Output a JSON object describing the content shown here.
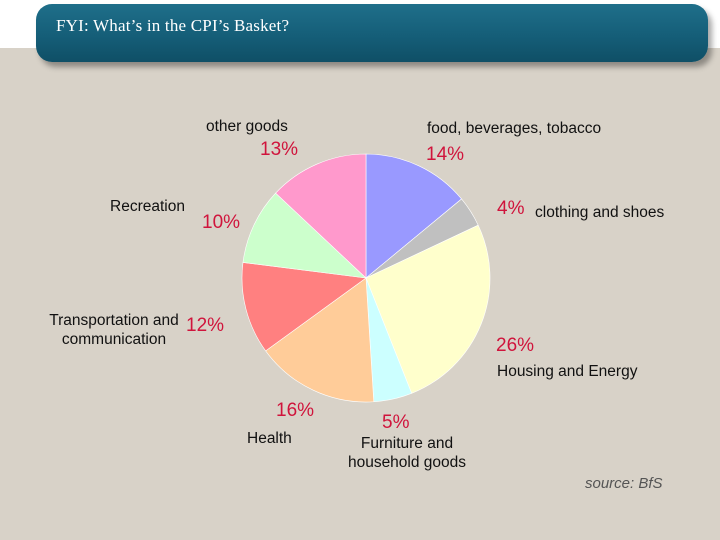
{
  "header": {
    "title": "FYI: What’s in the CPI’s Basket?"
  },
  "chart_data": {
    "type": "pie",
    "title": "",
    "start_angle_deg": 0,
    "direction": "clockwise",
    "slices": [
      {
        "label": "food, beverages, tobacco",
        "value": 14,
        "pct_label": "14%",
        "color": "#9999ff"
      },
      {
        "label": "clothing and shoes",
        "value": 4,
        "pct_label": "4%",
        "color": "#c0c0c0"
      },
      {
        "label": "Housing and Energy",
        "value": 26,
        "pct_label": "26%",
        "color": "#ffffcc"
      },
      {
        "label": "Furniture and household goods",
        "value": 5,
        "pct_label": "5%",
        "color": "#ccffff"
      },
      {
        "label": "Health",
        "value": 16,
        "pct_label": "16%",
        "color": "#ffcc99"
      },
      {
        "label": "Transportation and communication",
        "value": 12,
        "pct_label": "12%",
        "color": "#ff8080"
      },
      {
        "label": "Recreation",
        "value": 10,
        "pct_label": "10%",
        "color": "#ccffcc"
      },
      {
        "label": "other goods",
        "value": 13,
        "pct_label": "13%",
        "color": "#ff99cc"
      }
    ]
  },
  "footer": {
    "source": "source: BfS"
  }
}
